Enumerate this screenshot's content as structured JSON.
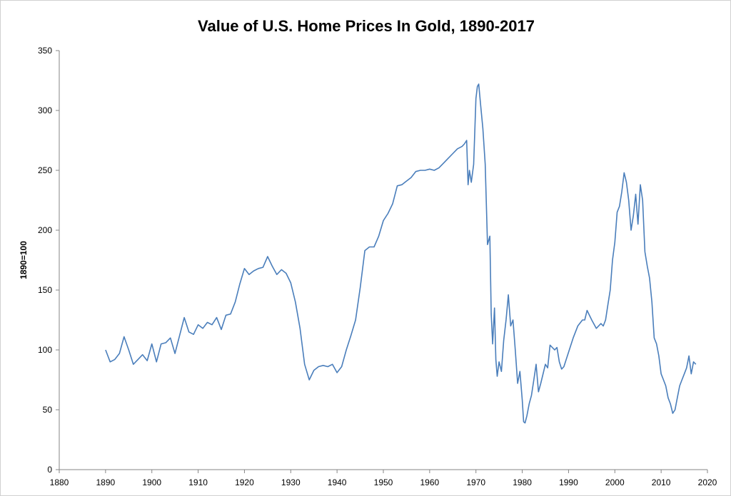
{
  "chart_data": {
    "type": "line",
    "title": "Value of U.S. Home Prices In Gold, 1890-2017",
    "xlabel": "",
    "ylabel": "1890=100",
    "xlim": [
      1880,
      2020
    ],
    "ylim": [
      0,
      350
    ],
    "x_ticks": [
      1880,
      1890,
      1900,
      1910,
      1920,
      1930,
      1940,
      1950,
      1960,
      1970,
      1980,
      1990,
      2000,
      2010,
      2020
    ],
    "y_ticks": [
      0,
      50,
      100,
      150,
      200,
      250,
      300,
      350
    ],
    "grid": false,
    "legend": "none",
    "line_color": "#4a7ebb",
    "series": [
      {
        "x": [
          1890,
          1891,
          1892,
          1893,
          1894,
          1895,
          1896,
          1897,
          1898,
          1899,
          1900,
          1901,
          1902,
          1903,
          1904,
          1905,
          1906,
          1907,
          1908,
          1909,
          1910,
          1911,
          1912,
          1913,
          1914,
          1915,
          1916,
          1917,
          1918,
          1919,
          1920,
          1921,
          1922,
          1923,
          1924,
          1925,
          1926,
          1927,
          1928,
          1929,
          1930,
          1931,
          1932,
          1933,
          1934,
          1935,
          1936,
          1937,
          1938,
          1939,
          1940,
          1941,
          1942,
          1943,
          1944,
          1945,
          1946,
          1947,
          1948,
          1949,
          1950,
          1951,
          1952,
          1953,
          1954,
          1955,
          1956,
          1957,
          1958,
          1959,
          1960,
          1961,
          1962,
          1963,
          1964,
          1965,
          1966,
          1967,
          1967.5,
          1968,
          1968.3,
          1968.6,
          1969,
          1969.5,
          1970,
          1970.3,
          1970.6,
          1971,
          1971.5,
          1972,
          1972.5,
          1973,
          1973.3,
          1973.6,
          1974,
          1974.3,
          1974.6,
          1975,
          1975.5,
          1976,
          1976.5,
          1977,
          1977.5,
          1978,
          1978.5,
          1979,
          1979.5,
          1980,
          1980.3,
          1980.6,
          1981,
          1981.5,
          1982,
          1982.5,
          1983,
          1983.5,
          1984,
          1985,
          1985.5,
          1986,
          1987,
          1987.5,
          1988,
          1988.5,
          1989,
          1990,
          1991,
          1992,
          1993,
          1993.5,
          1994,
          1995,
          1996,
          1997,
          1997.5,
          1998,
          1998.5,
          1999,
          1999.5,
          2000,
          2000.5,
          2001,
          2001.5,
          2002,
          2002.5,
          2003,
          2003.5,
          2004,
          2004.5,
          2005,
          2005.5,
          2006,
          2006.5,
          2007,
          2007.5,
          2008,
          2008.5,
          2009,
          2009.5,
          2010,
          2010.5,
          2011,
          2011.5,
          2012,
          2012.5,
          2013,
          2013.5,
          2014,
          2014.5,
          2015,
          2015.5,
          2016,
          2016.5,
          2017,
          2017.5
        ],
        "y": [
          100,
          90,
          92,
          97,
          111,
          100,
          88,
          92,
          96,
          91,
          105,
          90,
          105,
          106,
          110,
          97,
          112,
          127,
          115,
          113,
          121,
          118,
          123,
          121,
          127,
          117,
          129,
          130,
          140,
          155,
          168,
          163,
          166,
          168,
          169,
          178,
          170,
          163,
          167,
          164,
          156,
          140,
          118,
          88,
          75,
          83,
          86,
          87,
          86,
          88,
          81,
          86,
          100,
          112,
          125,
          152,
          183,
          186,
          186,
          195,
          208,
          214,
          222,
          237,
          238,
          241,
          244,
          249,
          250,
          250,
          251,
          250,
          252,
          256,
          260,
          264,
          268,
          270,
          272,
          275,
          238,
          250,
          240,
          255,
          310,
          320,
          322,
          305,
          285,
          255,
          188,
          195,
          130,
          105,
          135,
          92,
          78,
          90,
          82,
          108,
          125,
          146,
          120,
          125,
          100,
          72,
          82,
          58,
          40,
          39,
          45,
          55,
          62,
          75,
          88,
          65,
          72,
          88,
          85,
          104,
          100,
          102,
          90,
          84,
          86,
          98,
          110,
          120,
          125,
          125,
          133,
          125,
          118,
          122,
          120,
          125,
          138,
          150,
          175,
          190,
          215,
          220,
          232,
          248,
          240,
          225,
          200,
          212,
          230,
          205,
          238,
          225,
          182,
          170,
          160,
          140,
          110,
          105,
          95,
          80,
          75,
          70,
          60,
          55,
          47,
          50,
          60,
          70,
          75,
          80,
          85,
          95,
          80,
          90,
          88
        ]
      }
    ]
  }
}
